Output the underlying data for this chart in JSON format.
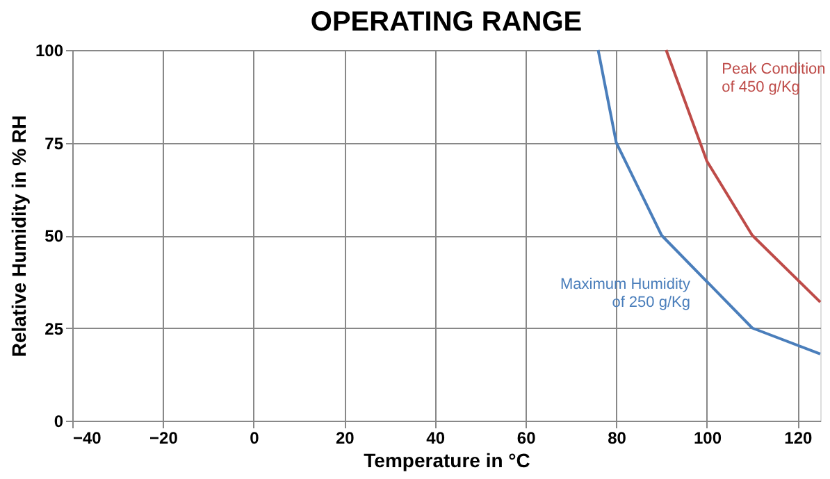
{
  "chart_data": {
    "type": "line",
    "title": "OPERATING RANGE",
    "xlabel": "Temperature in °C",
    "ylabel": "Relative Humidity in % RH",
    "series": [
      {
        "name": "Maximum Humidity\nof 250 g/Kg",
        "color": "#4a7ebb",
        "x": [
          76,
          80,
          90,
          100,
          110,
          125
        ],
        "values": [
          100,
          75,
          50,
          37.5,
          25,
          18
        ]
      },
      {
        "name": "Peak Condition\nof 450 g/Kg",
        "color": "#be4b48",
        "x": [
          91,
          100,
          110,
          125
        ],
        "values": [
          100,
          70,
          50,
          32
        ]
      }
    ],
    "xlim": [
      -40,
      125
    ],
    "xticks": [
      -40,
      -20,
      0,
      20,
      40,
      60,
      80,
      100,
      120
    ],
    "ylim": [
      0,
      100
    ],
    "yticks": [
      0,
      25,
      50,
      75,
      100
    ],
    "grid": true,
    "legend": false,
    "marker": "none",
    "line_style": "solid"
  }
}
